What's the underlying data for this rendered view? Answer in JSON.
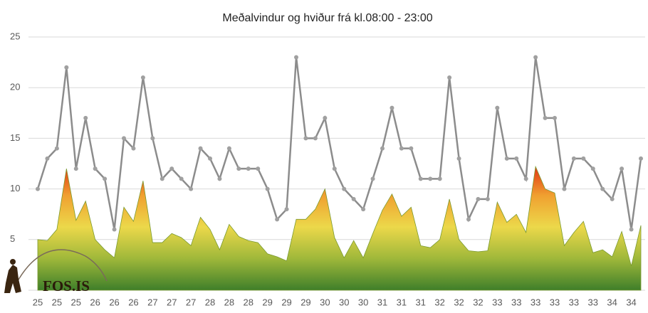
{
  "chart_data": {
    "type": "area_line",
    "title": "Meðalvindur og hviður frá kl.08:00 - 23:00",
    "logo": "FOS.IS",
    "categories": [
      "25",
      null,
      "25",
      null,
      "25",
      null,
      "26",
      null,
      "26",
      null,
      "26",
      null,
      "27",
      null,
      "27",
      null,
      "27",
      null,
      "28",
      null,
      "28",
      null,
      "28",
      null,
      "29",
      null,
      "29",
      null,
      "29",
      null,
      "30",
      null,
      "30",
      null,
      "30",
      null,
      "31",
      null,
      "31",
      null,
      "31",
      null,
      "32",
      null,
      "32",
      null,
      "32",
      null,
      "33",
      null,
      "33",
      null,
      "33",
      null,
      "33",
      null,
      "33",
      null,
      "33",
      null,
      "34",
      null,
      "34",
      null
    ],
    "series": [
      {
        "kind": "area",
        "gradient": [
          "#3f7f2a",
          "#9fb83a",
          "#ecd84a",
          "#f0a030",
          "#e02a10"
        ],
        "values": [
          5,
          4.9,
          6,
          12,
          6.9,
          8.8,
          5,
          4,
          3.2,
          8.2,
          6.8,
          10.8,
          4.7,
          4.7,
          5.6,
          5.2,
          4.4,
          7.2,
          6,
          4,
          6.5,
          5.3,
          4.9,
          4.7,
          3.6,
          3.3,
          2.9,
          7,
          7,
          8,
          10,
          5.2,
          3.2,
          4.9,
          3.2,
          5.6,
          7.9,
          9.5,
          7.3,
          8.2,
          4.4,
          4.2,
          5,
          9,
          5,
          3.9,
          3.8,
          3.9,
          8.7,
          6.7,
          7.5,
          5.7,
          12.2,
          10,
          9.6,
          4.4,
          5.7,
          6.8,
          3.7,
          4,
          3.3,
          5.8,
          2.4,
          6.4
        ]
      },
      {
        "kind": "line",
        "color": "#8c8c8c",
        "marker_color": "#a0a0a0",
        "values": [
          10,
          13,
          14,
          22,
          12,
          17,
          12,
          11,
          6,
          15,
          14,
          21,
          15,
          11,
          12,
          11,
          10,
          14,
          13,
          11,
          14,
          12,
          12,
          12,
          10,
          7,
          8,
          23,
          15,
          15,
          17,
          12,
          10,
          9,
          8,
          11,
          14,
          18,
          14,
          14,
          11,
          11,
          11,
          21,
          13,
          7,
          9,
          9,
          18,
          13,
          13,
          11,
          23,
          17,
          17,
          10,
          13,
          13,
          12,
          10,
          9,
          12,
          6,
          13
        ]
      }
    ],
    "ylim": [
      0,
      25
    ],
    "yticks": [
      5,
      10,
      15,
      20,
      25
    ],
    "grid": true
  }
}
